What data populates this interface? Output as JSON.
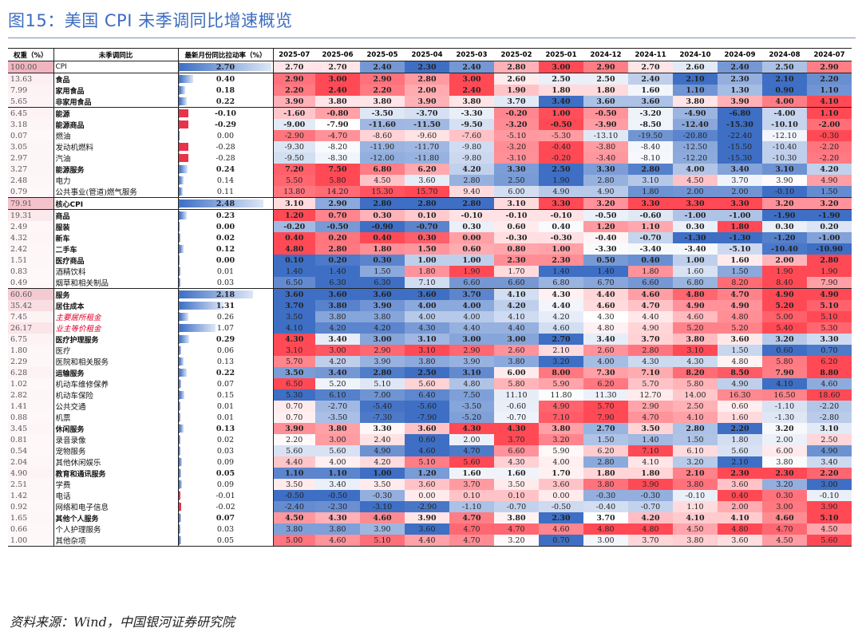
{
  "title": "图15：美国 CPI 未季调同比增速概览",
  "source": "资料来源：Wind，中国银河证券研究院",
  "chart_data": {
    "type": "table",
    "columns": {
      "weight": "权重（%）",
      "name": "未季调同比",
      "contrib": "最新月份同比拉动率（%）"
    },
    "months": [
      "2025-07",
      "2025-06",
      "2025-05",
      "2025-04",
      "2025-03",
      "2025-02",
      "2025-01",
      "2024-12",
      "2024-11",
      "2024-10",
      "2024-09",
      "2024-08",
      "2024-07"
    ],
    "rows": [
      {
        "w": "100.00",
        "name": "CPI",
        "lvl": 0,
        "c": "2.70",
        "cv": 2.7,
        "v": [
          "2.70",
          "2.70",
          "2.40",
          "2.30",
          "2.40",
          "2.80",
          "3.00",
          "2.90",
          "2.70",
          "2.60",
          "2.40",
          "2.50",
          "2.90"
        ]
      },
      {
        "w": "13.63",
        "name": "食品",
        "lvl": 1,
        "c": "0.40",
        "cv": 0.4,
        "v": [
          "2.90",
          "3.00",
          "2.90",
          "2.80",
          "3.00",
          "2.60",
          "2.50",
          "2.50",
          "2.40",
          "2.10",
          "2.30",
          "2.10",
          "2.20"
        ]
      },
      {
        "w": "7.99",
        "name": "家用食品",
        "lvl": 2,
        "c": "0.18",
        "cv": 0.18,
        "v": [
          "2.20",
          "2.40",
          "2.20",
          "2.00",
          "2.40",
          "1.90",
          "1.80",
          "1.80",
          "1.60",
          "1.10",
          "1.30",
          "0.90",
          "1.10"
        ]
      },
      {
        "w": "5.65",
        "name": "非家用食品",
        "lvl": 2,
        "c": "0.22",
        "cv": 0.22,
        "v": [
          "3.90",
          "3.80",
          "3.80",
          "3.90",
          "3.80",
          "3.70",
          "3.40",
          "3.60",
          "3.60",
          "3.80",
          "3.90",
          "4.00",
          "4.10"
        ]
      },
      {
        "w": "6.45",
        "name": "能源",
        "lvl": 1,
        "c": "-0.10",
        "cv": -0.1,
        "v": [
          "-1.60",
          "-0.80",
          "-3.50",
          "-3.70",
          "-3.30",
          "-0.20",
          "1.00",
          "-0.50",
          "-3.20",
          "-4.90",
          "-6.80",
          "-4.00",
          "1.10"
        ]
      },
      {
        "w": "3.18",
        "name": "能源商品",
        "lvl": 2,
        "c": "-0.29",
        "cv": -0.29,
        "v": [
          "-9.00",
          "-7.90",
          "-11.60",
          "-11.50",
          "-9.50",
          "-3.20",
          "-0.50",
          "-3.90",
          "-8.50",
          "-12.40",
          "-15.30",
          "-10.10",
          "-2.00"
        ]
      },
      {
        "w": "0.07",
        "name": "燃油",
        "lvl": 3,
        "c": "0.00",
        "cv": 0.0,
        "v": [
          "-2.90",
          "-4.70",
          "-8.60",
          "-9.60",
          "-7.60",
          "-5.10",
          "-5.30",
          "-13.10",
          "-19.50",
          "-20.80",
          "-22.40",
          "-12.10",
          "-0.30"
        ]
      },
      {
        "w": "3.05",
        "name": "发动机燃料",
        "lvl": 3,
        "c": "-0.28",
        "cv": -0.28,
        "v": [
          "-9.30",
          "-8.20",
          "-11.90",
          "-11.70",
          "-9.80",
          "-3.20",
          "-0.40",
          "-3.80",
          "-8.40",
          "-12.50",
          "-15.50",
          "-10.40",
          "-2.20"
        ]
      },
      {
        "w": "2.97",
        "name": "汽油",
        "lvl": 3,
        "c": "-0.28",
        "cv": -0.28,
        "v": [
          "-9.50",
          "-8.30",
          "-12.00",
          "-11.80",
          "-9.80",
          "-3.10",
          "-0.20",
          "-3.40",
          "-8.10",
          "-12.20",
          "-15.30",
          "-10.30",
          "-2.20"
        ]
      },
      {
        "w": "3.27",
        "name": "能源服务",
        "lvl": 2,
        "c": "0.24",
        "cv": 0.24,
        "v": [
          "7.20",
          "7.50",
          "6.80",
          "6.20",
          "4.20",
          "3.30",
          "2.50",
          "3.30",
          "2.80",
          "4.00",
          "3.40",
          "3.10",
          "4.20"
        ]
      },
      {
        "w": "2.48",
        "name": "电力",
        "lvl": 3,
        "c": "0.14",
        "cv": 0.14,
        "v": [
          "5.50",
          "5.80",
          "4.50",
          "3.60",
          "2.80",
          "2.50",
          "1.90",
          "2.80",
          "3.10",
          "4.50",
          "3.70",
          "3.90",
          "4.90"
        ]
      },
      {
        "w": "0.79",
        "name": "公共事业(管道)燃气服务",
        "lvl": 3,
        "c": "0.11",
        "cv": 0.11,
        "v": [
          "13.80",
          "14.20",
          "15.30",
          "15.70",
          "9.40",
          "6.00",
          "4.90",
          "4.90",
          "1.80",
          "2.00",
          "2.00",
          "-0.10",
          "1.50"
        ]
      },
      {
        "w": "79.91",
        "name": "核心CPI",
        "lvl": 0,
        "c": "2.48",
        "cv": 2.48,
        "v": [
          "3.10",
          "2.90",
          "2.80",
          "2.80",
          "2.80",
          "3.10",
          "3.30",
          "3.20",
          "3.30",
          "3.30",
          "3.30",
          "3.20",
          "3.20"
        ]
      },
      {
        "w": "19.31",
        "name": "商品",
        "lvl": 1,
        "c": "0.23",
        "cv": 0.23,
        "v": [
          "1.20",
          "0.70",
          "0.30",
          "0.10",
          "-0.10",
          "-0.10",
          "-0.10",
          "-0.50",
          "-0.60",
          "-1.00",
          "-1.00",
          "-1.90",
          "-1.90"
        ]
      },
      {
        "w": "2.49",
        "name": "服装",
        "lvl": 2,
        "c": "0.00",
        "cv": 0.0,
        "v": [
          "-0.20",
          "-0.50",
          "-0.90",
          "-0.70",
          "0.30",
          "0.60",
          "0.40",
          "1.20",
          "1.10",
          "0.30",
          "1.80",
          "0.30",
          "0.20"
        ]
      },
      {
        "w": "4.32",
        "name": "新车",
        "lvl": 2,
        "c": "0.02",
        "cv": 0.02,
        "v": [
          "0.40",
          "0.20",
          "0.40",
          "0.30",
          "0.00",
          "-0.30",
          "-0.30",
          "-0.40",
          "-0.70",
          "-1.30",
          "-1.30",
          "-1.20",
          "-1.00"
        ]
      },
      {
        "w": "2.42",
        "name": "二手车",
        "lvl": 2,
        "c": "0.12",
        "cv": 0.12,
        "v": [
          "4.80",
          "2.80",
          "1.80",
          "1.50",
          "0.60",
          "0.80",
          "1.00",
          "-3.30",
          "-3.40",
          "-3.40",
          "-5.10",
          "-10.40",
          "-10.90"
        ]
      },
      {
        "w": "1.51",
        "name": "医疗商品",
        "lvl": 2,
        "c": "0.00",
        "cv": 0.0,
        "v": [
          "0.10",
          "0.20",
          "0.30",
          "1.00",
          "1.00",
          "2.30",
          "2.30",
          "0.50",
          "0.40",
          "1.00",
          "1.60",
          "2.00",
          "2.80"
        ]
      },
      {
        "w": "0.83",
        "name": "酒精饮料",
        "lvl": 3,
        "c": "0.01",
        "cv": 0.01,
        "v": [
          "1.40",
          "1.40",
          "1.50",
          "1.80",
          "1.90",
          "1.70",
          "1.40",
          "1.40",
          "1.80",
          "1.60",
          "1.50",
          "1.90",
          "1.90"
        ]
      },
      {
        "w": "0.49",
        "name": "烟草和相关制品",
        "lvl": 3,
        "c": "0.03",
        "cv": 0.03,
        "v": [
          "6.50",
          "6.30",
          "6.30",
          "7.10",
          "6.60",
          "6.60",
          "6.80",
          "6.70",
          "6.60",
          "6.80",
          "8.20",
          "8.40",
          "7.90"
        ]
      },
      {
        "w": "60.60",
        "name": "服务",
        "lvl": 1,
        "c": "2.18",
        "cv": 2.18,
        "v": [
          "3.60",
          "3.60",
          "3.60",
          "3.60",
          "3.70",
          "4.10",
          "4.30",
          "4.40",
          "4.60",
          "4.80",
          "4.70",
          "4.90",
          "4.90"
        ]
      },
      {
        "w": "35.42",
        "name": "居住成本",
        "lvl": 2,
        "c": "1.31",
        "cv": 1.31,
        "v": [
          "3.70",
          "3.80",
          "3.90",
          "4.00",
          "4.00",
          "4.20",
          "4.40",
          "4.60",
          "4.70",
          "4.90",
          "4.90",
          "5.20",
          "5.10"
        ]
      },
      {
        "w": "7.45",
        "name": "主要居所租金",
        "lvl": 4,
        "c": "0.26",
        "cv": 0.26,
        "v": [
          "3.50",
          "3.80",
          "3.80",
          "4.00",
          "4.00",
          "4.10",
          "4.20",
          "4.30",
          "4.40",
          "4.60",
          "4.80",
          "5.00",
          "5.10"
        ]
      },
      {
        "w": "26.17",
        "name": "业主等价租金",
        "lvl": 4,
        "c": "1.07",
        "cv": 1.07,
        "v": [
          "4.10",
          "4.20",
          "4.20",
          "4.30",
          "4.40",
          "4.40",
          "4.60",
          "4.80",
          "4.90",
          "5.20",
          "5.20",
          "5.40",
          "5.30"
        ]
      },
      {
        "w": "6.75",
        "name": "医疗护理服务",
        "lvl": 2,
        "c": "0.29",
        "cv": 0.29,
        "v": [
          "4.30",
          "3.40",
          "3.00",
          "3.10",
          "3.00",
          "3.00",
          "2.70",
          "3.40",
          "3.70",
          "3.80",
          "3.60",
          "3.20",
          "3.30"
        ]
      },
      {
        "w": "1.80",
        "name": "医疗",
        "lvl": 3,
        "c": "0.06",
        "cv": 0.06,
        "v": [
          "3.10",
          "3.00",
          "2.90",
          "3.10",
          "2.90",
          "2.60",
          "2.10",
          "2.60",
          "2.80",
          "3.10",
          "1.50",
          "0.60",
          "0.70"
        ]
      },
      {
        "w": "2.29",
        "name": "医院和相关服务",
        "lvl": 3,
        "c": "0.13",
        "cv": 0.13,
        "v": [
          "5.70",
          "4.20",
          "3.90",
          "3.80",
          "3.90",
          "3.80",
          "3.20",
          "4.00",
          "4.30",
          "4.30",
          "4.80",
          "5.80",
          "6.20"
        ]
      },
      {
        "w": "6.28",
        "name": "运输服务",
        "lvl": 2,
        "c": "0.22",
        "cv": 0.22,
        "v": [
          "3.50",
          "3.40",
          "2.80",
          "2.50",
          "3.10",
          "6.00",
          "8.00",
          "7.30",
          "7.10",
          "8.20",
          "8.50",
          "7.90",
          "8.80"
        ]
      },
      {
        "w": "1.02",
        "name": "机动车维修保养",
        "lvl": 3,
        "c": "0.07",
        "cv": 0.07,
        "v": [
          "6.50",
          "5.20",
          "5.10",
          "5.60",
          "4.80",
          "5.80",
          "5.90",
          "6.20",
          "5.70",
          "5.80",
          "4.90",
          "4.10",
          "4.60"
        ]
      },
      {
        "w": "2.82",
        "name": "机动车保险",
        "lvl": 3,
        "c": "0.15",
        "cv": 0.15,
        "v": [
          "5.30",
          "6.10",
          "7.00",
          "6.40",
          "7.50",
          "11.10",
          "11.80",
          "11.30",
          "12.70",
          "14.00",
          "16.30",
          "16.50",
          "18.60"
        ]
      },
      {
        "w": "1.41",
        "name": "公共交通",
        "lvl": 3,
        "c": "0.01",
        "cv": 0.01,
        "v": [
          "0.70",
          "-2.70",
          "-5.40",
          "-5.60",
          "-3.50",
          "-0.60",
          "4.90",
          "5.70",
          "2.90",
          "2.50",
          "0.60",
          "-1.10",
          "-2.20"
        ]
      },
      {
        "w": "0.88",
        "name": "机票",
        "lvl": 3,
        "c": "0.01",
        "cv": 0.01,
        "v": [
          "0.70",
          "-3.50",
          "-7.30",
          "-7.90",
          "-5.20",
          "-0.70",
          "7.10",
          "7.90",
          "4.70",
          "4.10",
          "1.60",
          "-1.30",
          "-2.80"
        ]
      },
      {
        "w": "3.45",
        "name": "休闲服务",
        "lvl": 2,
        "c": "0.13",
        "cv": 0.13,
        "v": [
          "3.90",
          "3.80",
          "3.30",
          "3.60",
          "4.30",
          "4.30",
          "3.80",
          "2.70",
          "3.50",
          "2.80",
          "2.20",
          "3.20",
          "3.10"
        ]
      },
      {
        "w": "0.81",
        "name": "录音录像",
        "lvl": 3,
        "c": "0.02",
        "cv": 0.02,
        "v": [
          "2.20",
          "3.00",
          "2.40",
          "0.60",
          "2.00",
          "3.70",
          "3.20",
          "1.50",
          "1.40",
          "1.50",
          "1.80",
          "2.00",
          "2.50"
        ]
      },
      {
        "w": "0.54",
        "name": "宠物服务",
        "lvl": 3,
        "c": "0.03",
        "cv": 0.03,
        "v": [
          "5.60",
          "5.60",
          "4.90",
          "4.60",
          "4.70",
          "6.60",
          "5.90",
          "6.20",
          "7.10",
          "6.10",
          "5.60",
          "6.00",
          "4.90"
        ]
      },
      {
        "w": "2.04",
        "name": "其他休闲娱乐",
        "lvl": 3,
        "c": "0.09",
        "cv": 0.09,
        "v": [
          "4.40",
          "4.00",
          "4.20",
          "5.10",
          "5.60",
          "4.30",
          "4.00",
          "2.80",
          "4.10",
          "3.20",
          "2.10",
          "3.80",
          "3.40"
        ]
      },
      {
        "w": "4.90",
        "name": "教育和通讯服务",
        "lvl": 2,
        "c": "0.05",
        "cv": 0.05,
        "v": [
          "1.10",
          "1.10",
          "1.00",
          "1.20",
          "1.60",
          "1.60",
          "1.70",
          "1.80",
          "1.80",
          "2.10",
          "2.30",
          "2.30",
          "2.20"
        ]
      },
      {
        "w": "2.51",
        "name": "学费",
        "lvl": 3,
        "c": "0.09",
        "cv": 0.09,
        "v": [
          "3.50",
          "3.40",
          "3.50",
          "3.60",
          "3.70",
          "3.50",
          "3.60",
          "3.80",
          "3.90",
          "3.80",
          "3.60",
          "3.20",
          "3.00"
        ]
      },
      {
        "w": "1.42",
        "name": "电话",
        "lvl": 3,
        "c": "-0.01",
        "cv": -0.01,
        "v": [
          "-0.50",
          "-0.50",
          "-0.30",
          "0.00",
          "0.10",
          "0.10",
          "0.00",
          "-0.30",
          "-0.30",
          "-0.10",
          "0.40",
          "0.30",
          "-0.10"
        ]
      },
      {
        "w": "0.92",
        "name": "网络和电子信息",
        "lvl": 3,
        "c": "-0.02",
        "cv": -0.02,
        "v": [
          "-2.40",
          "-2.30",
          "-3.10",
          "-2.90",
          "-1.10",
          "-0.70",
          "-0.50",
          "-0.40",
          "-0.70",
          "1.10",
          "2.00",
          "3.00",
          "3.90"
        ]
      },
      {
        "w": "1.65",
        "name": "其他个人服务",
        "lvl": 2,
        "c": "0.07",
        "cv": 0.07,
        "v": [
          "4.50",
          "4.30",
          "4.60",
          "3.90",
          "4.70",
          "3.80",
          "2.30",
          "3.70",
          "4.20",
          "4.10",
          "4.10",
          "4.60",
          "5.10"
        ]
      },
      {
        "w": "0.66",
        "name": "个人护理服务",
        "lvl": 3,
        "c": "0.03",
        "cv": 0.03,
        "v": [
          "3.80",
          "3.80",
          "3.90",
          "3.60",
          "4.70",
          "4.70",
          "4.60",
          "4.80",
          "4.80",
          "4.50",
          "4.80",
          "4.70",
          "4.50"
        ]
      },
      {
        "w": "1.00",
        "name": "其他杂项",
        "lvl": 3,
        "c": "0.05",
        "cv": 0.05,
        "v": [
          "5.00",
          "4.60",
          "5.10",
          "4.40",
          "4.70",
          "3.20",
          "0.70",
          "3.00",
          "3.70",
          "3.80",
          "3.60",
          "4.50",
          "5.60"
        ]
      }
    ]
  }
}
